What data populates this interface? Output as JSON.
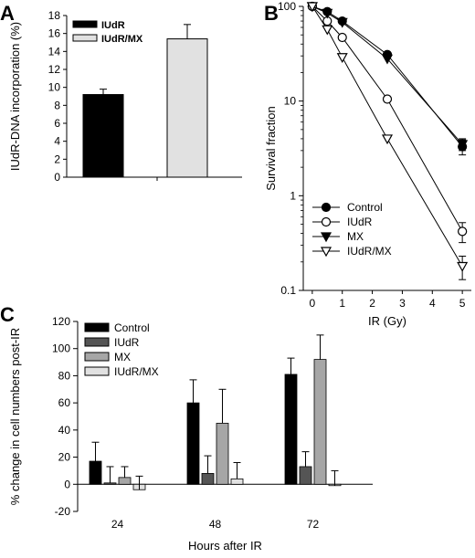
{
  "colors": {
    "black": "#000000",
    "dark_gray": "#555555",
    "mid_gray": "#a6a6a6",
    "light_gray": "#e1e1e1",
    "open": "#ffffff"
  },
  "panels": {
    "A": {
      "letter": "A"
    },
    "B": {
      "letter": "B"
    },
    "C": {
      "letter": "C"
    }
  },
  "chart_data": [
    {
      "id": "A",
      "type": "bar",
      "ylabel": "IUdR-DNA incorporation (%)",
      "ylim": [
        0,
        18
      ],
      "yticks": [
        0,
        2,
        4,
        6,
        8,
        10,
        12,
        14,
        16,
        18
      ],
      "legend_position": "top-left",
      "series": [
        {
          "name": "IUdR",
          "value": 9.2,
          "error": 0.6,
          "color": "#000000"
        },
        {
          "name": "IUdR/MX",
          "value": 15.4,
          "error": 1.6,
          "color": "#e1e1e1"
        }
      ]
    },
    {
      "id": "B",
      "type": "line",
      "scale_y": "log",
      "xlabel": "IR (Gy)",
      "ylabel": "Survival fraction",
      "xlim": [
        -0.3,
        5.3
      ],
      "ylim": [
        0.1,
        100
      ],
      "xticks": [
        0,
        1,
        2,
        3,
        4,
        5
      ],
      "yticks": [
        0.1,
        1,
        10,
        100
      ],
      "ytick_labels": [
        "0.1",
        "1",
        "10",
        "100"
      ],
      "legend_position": "bottom-left",
      "series": [
        {
          "name": "Control",
          "marker": "circle-filled",
          "x": [
            0,
            0.5,
            1,
            2.5,
            5
          ],
          "y": [
            100,
            88,
            70,
            31,
            3.3
          ],
          "err_last": 0.6
        },
        {
          "name": "IUdR",
          "marker": "circle-open",
          "x": [
            0,
            0.5,
            1,
            2.5,
            5
          ],
          "y": [
            100,
            70,
            47,
            10.5,
            0.42
          ],
          "err_last": 0.1
        },
        {
          "name": "MX",
          "marker": "triangle-down-filled",
          "x": [
            0,
            0.5,
            1,
            2.5,
            5
          ],
          "y": [
            100,
            85,
            68,
            28,
            3.5
          ],
          "err_last": 0.5
        },
        {
          "name": "IUdR/MX",
          "marker": "triangle-down-open",
          "x": [
            0,
            0.5,
            1,
            2.5,
            5
          ],
          "y": [
            100,
            57,
            29,
            4.0,
            0.18
          ],
          "err_last": 0.05
        }
      ]
    },
    {
      "id": "C",
      "type": "bar",
      "xlabel": "Hours after IR",
      "ylabel": "% change in cell numbers post-IR",
      "ylim": [
        -20,
        120
      ],
      "yticks": [
        -20,
        0,
        20,
        40,
        60,
        80,
        100,
        120
      ],
      "categories": [
        "24",
        "48",
        "72"
      ],
      "legend_position": "top-left",
      "series": [
        {
          "name": "Control",
          "color": "#000000",
          "values": [
            17,
            60,
            81
          ],
          "errors": [
            14,
            17,
            12
          ]
        },
        {
          "name": "IUdR",
          "color": "#555555",
          "values": [
            1,
            8,
            13
          ],
          "errors": [
            12,
            13,
            11
          ]
        },
        {
          "name": "MX",
          "color": "#a6a6a6",
          "values": [
            5,
            45,
            92
          ],
          "errors": [
            8,
            25,
            18
          ]
        },
        {
          "name": "IUdR/MX",
          "color": "#e1e1e1",
          "values": [
            -4,
            4,
            -1
          ],
          "errors": [
            10,
            12,
            11
          ]
        }
      ]
    }
  ]
}
